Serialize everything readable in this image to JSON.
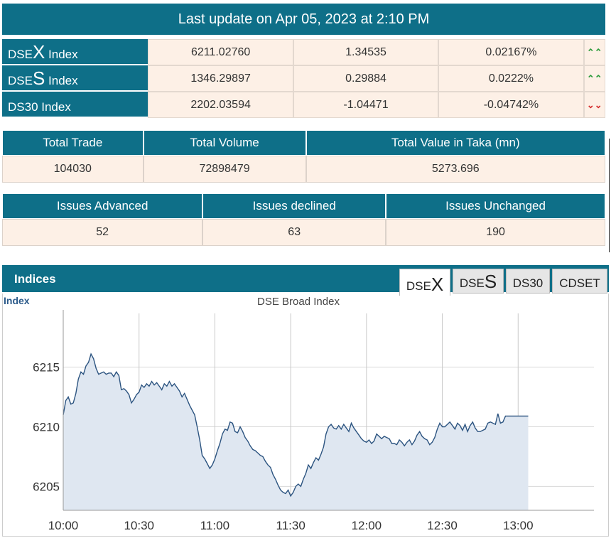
{
  "update": {
    "text": "Last update on Apr 05, 2023 at 2:10 PM"
  },
  "indices_table": [
    {
      "prefix": "DSE",
      "big": "X",
      "suffix": " Index",
      "value": "6211.02760",
      "change": "1.34535",
      "pct": "0.02167%",
      "trend": "up",
      "arrow": "⌃⌃"
    },
    {
      "prefix": "DSE",
      "big": "S",
      "suffix": " Index",
      "value": "1346.29897",
      "change": "0.29884",
      "pct": "0.0222%",
      "trend": "up",
      "arrow": "⌃⌃"
    },
    {
      "prefix": "DS30 Index",
      "big": "",
      "suffix": "",
      "value": "2202.03594",
      "change": "-1.04471",
      "pct": "-0.04742%",
      "trend": "down",
      "arrow": "⌄⌄"
    }
  ],
  "trade": {
    "headers": [
      "Total Trade",
      "Total Volume",
      "Total Value in Taka (mn)"
    ],
    "values": [
      "104030",
      "72898479",
      "5273.696"
    ]
  },
  "issues": {
    "headers": [
      "Issues Advanced",
      "Issues declined",
      "Issues Unchanged"
    ],
    "values": [
      "52",
      "63",
      "190"
    ]
  },
  "indices_panel": {
    "title": "Indices",
    "tabs": [
      {
        "prefix": "DSE",
        "big": "X"
      },
      {
        "prefix": "DSE",
        "big": "S"
      },
      {
        "prefix": "DS30",
        "big": ""
      },
      {
        "prefix": "CDSET",
        "big": ""
      }
    ],
    "active_tab": 0
  },
  "chart_data": {
    "type": "area",
    "title": "DSE Broad Index",
    "ylabel": "Index",
    "xlabel": "",
    "x_ticks": [
      "10:00",
      "10:30",
      "11:00",
      "11:30",
      "12:00",
      "12:30",
      "13:00"
    ],
    "y_ticks": [
      6205,
      6210,
      6215
    ],
    "ylim": [
      6203,
      6219.5
    ],
    "xlim_minutes": [
      0,
      210
    ],
    "fill_color": "#dfe7f1",
    "line_color": "#2c5480",
    "points": [
      [
        0,
        6211.0
      ],
      [
        1,
        6212.2
      ],
      [
        2,
        6212.5
      ],
      [
        3,
        6211.9
      ],
      [
        4,
        6212.0
      ],
      [
        5,
        6212.8
      ],
      [
        6,
        6214.0
      ],
      [
        7,
        6214.6
      ],
      [
        8,
        6214.4
      ],
      [
        9,
        6215.1
      ],
      [
        10,
        6215.4
      ],
      [
        11,
        6216.1
      ],
      [
        12,
        6215.7
      ],
      [
        13,
        6214.9
      ],
      [
        14,
        6214.4
      ],
      [
        15,
        6214.5
      ],
      [
        16,
        6214.6
      ],
      [
        17,
        6214.4
      ],
      [
        18,
        6214.5
      ],
      [
        19,
        6214.5
      ],
      [
        20,
        6214.2
      ],
      [
        21,
        6214.6
      ],
      [
        22,
        6214.3
      ],
      [
        23,
        6213.1
      ],
      [
        24,
        6213.2
      ],
      [
        25,
        6213.0
      ],
      [
        26,
        6212.7
      ],
      [
        27,
        6212.0
      ],
      [
        28,
        6212.3
      ],
      [
        29,
        6212.7
      ],
      [
        30,
        6212.9
      ],
      [
        31,
        6213.5
      ],
      [
        32,
        6213.3
      ],
      [
        33,
        6213.6
      ],
      [
        34,
        6213.4
      ],
      [
        35,
        6213.8
      ],
      [
        36,
        6213.5
      ],
      [
        37,
        6213.7
      ],
      [
        38,
        6213.4
      ],
      [
        39,
        6213.1
      ],
      [
        40,
        6213.6
      ],
      [
        41,
        6213.4
      ],
      [
        42,
        6213.8
      ],
      [
        43,
        6213.4
      ],
      [
        44,
        6213.6
      ],
      [
        45,
        6213.3
      ],
      [
        46,
        6213.0
      ],
      [
        47,
        6212.5
      ],
      [
        48,
        6212.8
      ],
      [
        49,
        6212.3
      ],
      [
        50,
        6211.8
      ],
      [
        51,
        6211.4
      ],
      [
        52,
        6211.0
      ],
      [
        53,
        6210.0
      ],
      [
        54,
        6208.9
      ],
      [
        55,
        6207.6
      ],
      [
        56,
        6207.3
      ],
      [
        57,
        6206.9
      ],
      [
        58,
        6206.5
      ],
      [
        59,
        6206.8
      ],
      [
        60,
        6207.3
      ],
      [
        61,
        6208.0
      ],
      [
        62,
        6208.6
      ],
      [
        63,
        6209.4
      ],
      [
        64,
        6209.8
      ],
      [
        65,
        6209.7
      ],
      [
        66,
        6210.4
      ],
      [
        67,
        6210.3
      ],
      [
        68,
        6209.6
      ],
      [
        69,
        6209.5
      ],
      [
        70,
        6210.0
      ],
      [
        71,
        6209.6
      ],
      [
        72,
        6209.1
      ],
      [
        73,
        6208.8
      ],
      [
        74,
        6208.4
      ],
      [
        75,
        6208.1
      ],
      [
        76,
        6208.0
      ],
      [
        77,
        6207.8
      ],
      [
        78,
        6207.6
      ],
      [
        79,
        6207.5
      ],
      [
        80,
        6207.1
      ],
      [
        81,
        6206.8
      ],
      [
        82,
        6206.6
      ],
      [
        83,
        6206.0
      ],
      [
        84,
        6205.6
      ],
      [
        85,
        6205.1
      ],
      [
        86,
        6204.7
      ],
      [
        87,
        6204.5
      ],
      [
        88,
        6204.4
      ],
      [
        89,
        6204.7
      ],
      [
        90,
        6204.2
      ],
      [
        91,
        6204.5
      ],
      [
        92,
        6205.0
      ],
      [
        93,
        6205.2
      ],
      [
        94,
        6205.0
      ],
      [
        95,
        6205.6
      ],
      [
        96,
        6206.1
      ],
      [
        97,
        6206.8
      ],
      [
        98,
        6206.5
      ],
      [
        99,
        6207.0
      ],
      [
        100,
        6207.4
      ],
      [
        101,
        6207.2
      ],
      [
        102,
        6207.7
      ],
      [
        103,
        6208.3
      ],
      [
        104,
        6209.4
      ],
      [
        105,
        6210.0
      ],
      [
        106,
        6210.2
      ],
      [
        107,
        6209.9
      ],
      [
        108,
        6209.8
      ],
      [
        109,
        6210.1
      ],
      [
        110,
        6209.8
      ],
      [
        111,
        6210.2
      ],
      [
        112,
        6209.9
      ],
      [
        113,
        6209.6
      ],
      [
        114,
        6210.3
      ],
      [
        115,
        6209.9
      ],
      [
        116,
        6209.6
      ],
      [
        117,
        6209.3
      ],
      [
        118,
        6209.0
      ],
      [
        119,
        6208.8
      ],
      [
        120,
        6208.7
      ],
      [
        121,
        6208.9
      ],
      [
        122,
        6208.6
      ],
      [
        123,
        6208.8
      ],
      [
        124,
        6209.4
      ],
      [
        125,
        6209.2
      ],
      [
        126,
        6209.0
      ],
      [
        127,
        6209.2
      ],
      [
        128,
        6209.1
      ],
      [
        129,
        6209.0
      ],
      [
        130,
        6208.6
      ],
      [
        131,
        6208.6
      ],
      [
        132,
        6208.5
      ],
      [
        133,
        6208.9
      ],
      [
        134,
        6208.7
      ],
      [
        135,
        6208.4
      ],
      [
        136,
        6208.7
      ],
      [
        137,
        6208.9
      ],
      [
        138,
        6208.5
      ],
      [
        139,
        6208.8
      ],
      [
        140,
        6209.3
      ],
      [
        141,
        6209.6
      ],
      [
        142,
        6209.2
      ],
      [
        143,
        6209.0
      ],
      [
        144,
        6208.9
      ],
      [
        145,
        6208.5
      ],
      [
        146,
        6208.7
      ],
      [
        147,
        6209.1
      ],
      [
        148,
        6209.8
      ],
      [
        149,
        6210.3
      ],
      [
        150,
        6210.0
      ],
      [
        151,
        6210.0
      ],
      [
        152,
        6210.2
      ],
      [
        153,
        6210.4
      ],
      [
        154,
        6210.1
      ],
      [
        155,
        6209.8
      ],
      [
        156,
        6210.3
      ],
      [
        157,
        6210.1
      ],
      [
        158,
        6209.7
      ],
      [
        159,
        6210.2
      ],
      [
        160,
        6209.6
      ],
      [
        161,
        6210.1
      ],
      [
        162,
        6210.4
      ],
      [
        163,
        6209.9
      ],
      [
        164,
        6209.6
      ],
      [
        165,
        6209.6
      ],
      [
        166,
        6209.7
      ],
      [
        167,
        6209.8
      ],
      [
        168,
        6210.3
      ],
      [
        169,
        6210.4
      ],
      [
        170,
        6210.3
      ],
      [
        171,
        6210.2
      ],
      [
        172,
        6211.1
      ],
      [
        173,
        6210.3
      ],
      [
        174,
        6210.4
      ],
      [
        175,
        6210.9
      ],
      [
        176,
        6210.9
      ],
      [
        177,
        6210.9
      ],
      [
        178,
        6210.9
      ],
      [
        179,
        6210.9
      ],
      [
        180,
        6210.9
      ],
      [
        181,
        6210.9
      ],
      [
        182,
        6210.9
      ],
      [
        183,
        6210.9
      ],
      [
        184,
        6210.9
      ]
    ]
  }
}
